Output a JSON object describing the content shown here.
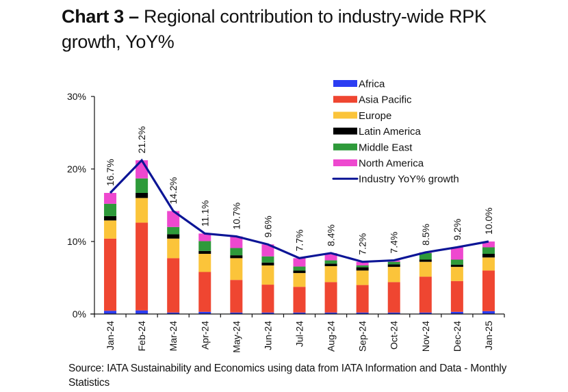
{
  "header": {
    "title_bold": "Chart 3 –",
    "title_rest": " Regional contribution to industry-wide RPK growth, YoY%"
  },
  "source": "Source: IATA Sustainability and Economics using data from IATA Information and Data - Monthly Statistics",
  "chart_data": {
    "type": "bar",
    "stacked": true,
    "title": "Chart 3 – Regional contribution to industry-wide RPK growth, YoY%",
    "xlabel": "",
    "ylabel": "",
    "ylim": [
      0,
      30
    ],
    "yticks": [
      0,
      10,
      20,
      30
    ],
    "ytick_labels": [
      "0%",
      "10%",
      "20%",
      "30%"
    ],
    "grid": false,
    "legend_position": "top-right",
    "categories": [
      "Jan-24",
      "Feb-24",
      "Mar-24",
      "Apr-24",
      "May-24",
      "Jun-24",
      "Jul-24",
      "Aug-24",
      "Sep-24",
      "Oct-24",
      "Nov-24",
      "Dec-24",
      "Jan-25"
    ],
    "series": [
      {
        "name": "Africa",
        "color": "#2b3df2",
        "values": [
          0.45,
          0.5,
          0.2,
          0.3,
          0.2,
          0.2,
          0.2,
          0.2,
          0.2,
          0.2,
          0.2,
          0.3,
          0.4
        ]
      },
      {
        "name": "Asia Pacific",
        "color": "#ef4631",
        "values": [
          9.95,
          12.1,
          7.5,
          5.5,
          4.5,
          3.85,
          3.55,
          4.2,
          3.8,
          4.2,
          4.95,
          4.25,
          5.6
        ]
      },
      {
        "name": "Europe",
        "color": "#fbc43a",
        "values": [
          2.5,
          3.4,
          2.7,
          2.5,
          3.0,
          2.65,
          1.9,
          2.2,
          2.0,
          2.1,
          2.05,
          1.95,
          1.8
        ]
      },
      {
        "name": "Latin America",
        "color": "#000000",
        "values": [
          0.6,
          0.7,
          0.6,
          0.4,
          0.4,
          0.4,
          0.35,
          0.35,
          0.45,
          0.35,
          0.3,
          0.3,
          0.5
        ]
      },
      {
        "name": "Middle East",
        "color": "#2e9a3a",
        "values": [
          1.7,
          2.0,
          1.0,
          1.35,
          1.0,
          0.85,
          0.55,
          0.45,
          0.25,
          0.35,
          0.9,
          0.7,
          0.9
        ]
      },
      {
        "name": "North America",
        "color": "#ee48cf",
        "values": [
          1.5,
          2.5,
          2.2,
          1.05,
          1.6,
          1.65,
          1.15,
          1.0,
          0.5,
          0.2,
          0.1,
          1.7,
          0.8
        ]
      }
    ],
    "line": {
      "name": "Industry YoY% growth",
      "color": "#0c1596",
      "values": [
        16.7,
        21.2,
        14.2,
        11.1,
        10.7,
        9.6,
        7.7,
        8.4,
        7.2,
        7.4,
        8.5,
        9.2,
        10.0
      ],
      "labels": [
        "16.7%",
        "21.2%",
        "14.2%",
        "11.1%",
        "10.7%",
        "9.6%",
        "7.7%",
        "8.4%",
        "7.2%",
        "7.4%",
        "8.5%",
        "9.2%",
        "10.0%"
      ]
    },
    "legend": [
      "Africa",
      "Asia Pacific",
      "Europe",
      "Latin America",
      "Middle East",
      "North America",
      "Industry YoY% growth"
    ]
  }
}
